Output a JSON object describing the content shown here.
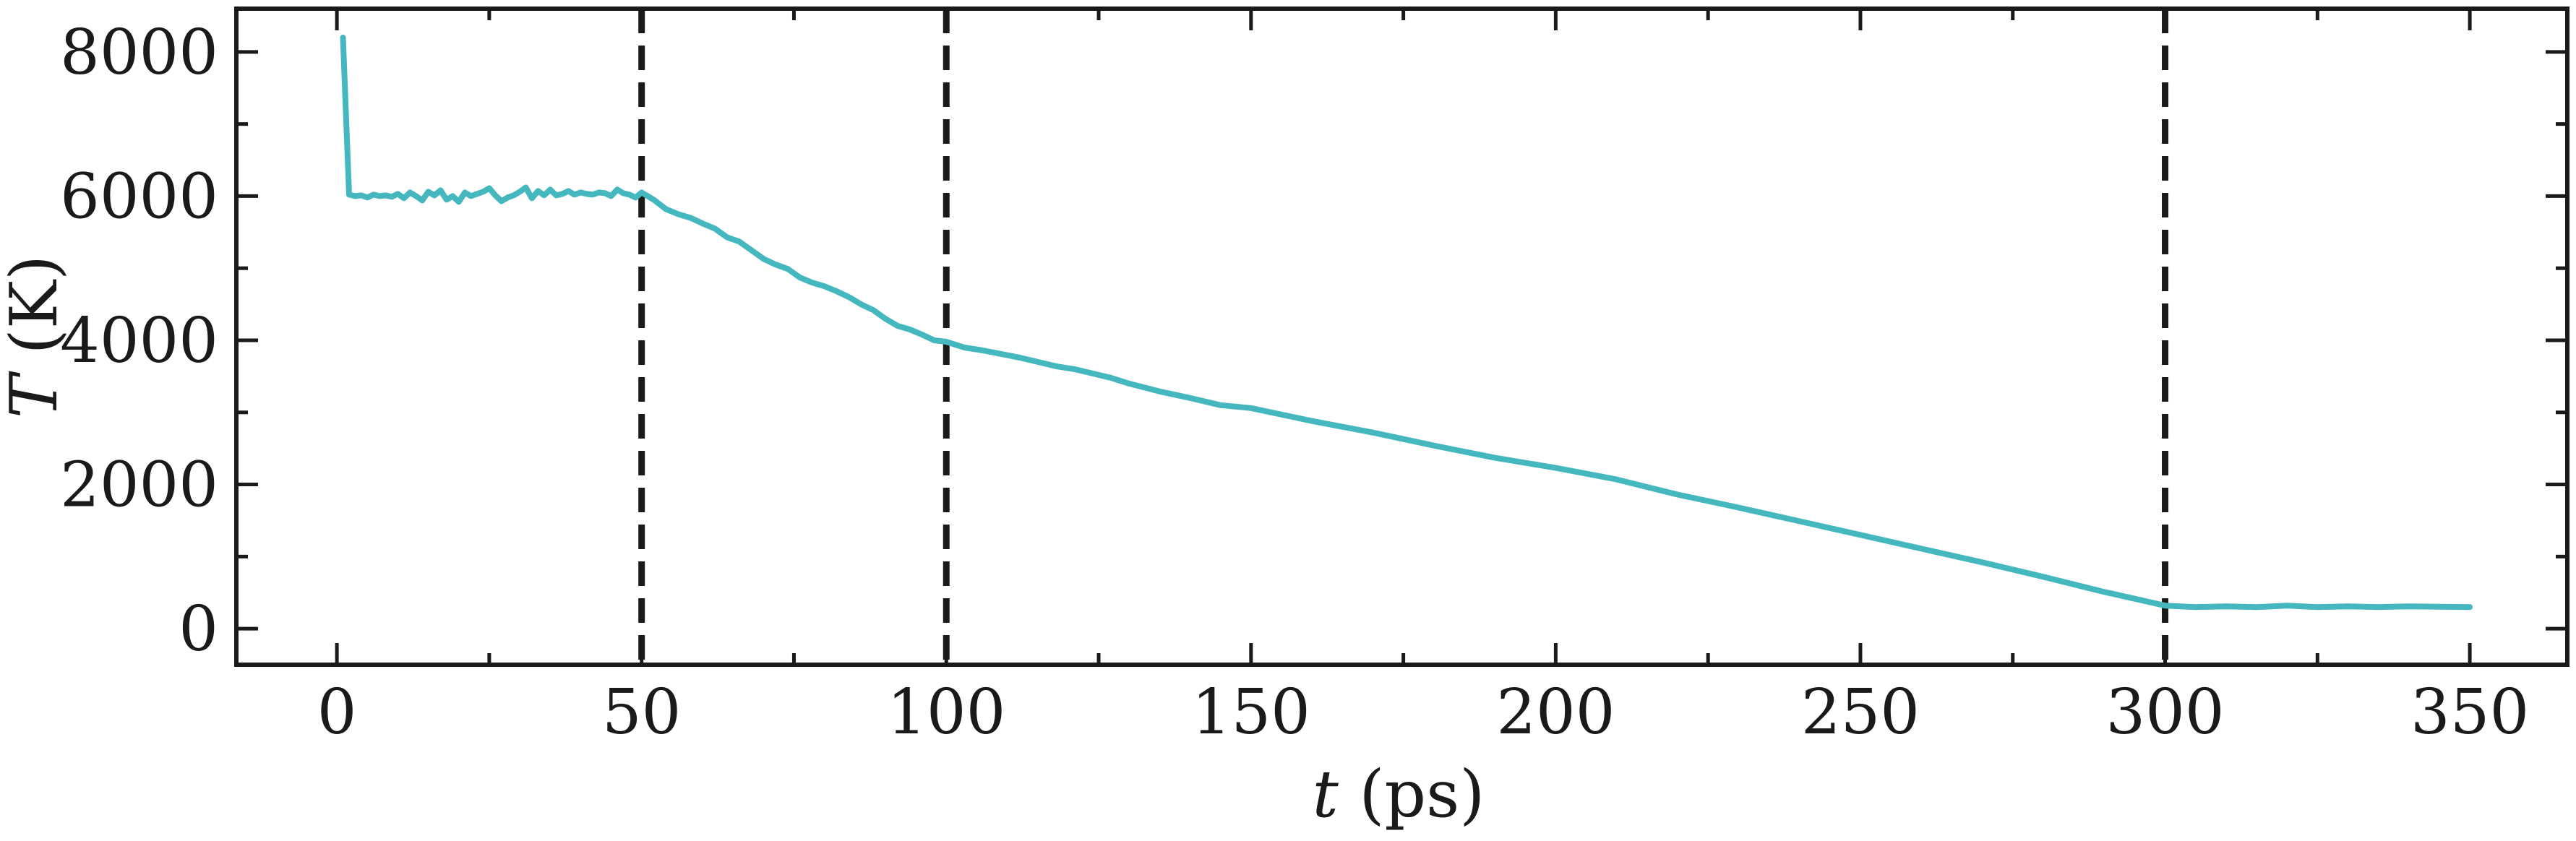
{
  "chart_data": {
    "type": "line",
    "title": "",
    "xlabel_symbol": "t",
    "xlabel_unit": " (ps)",
    "ylabel_symbol": "T",
    "ylabel_unit": " (K)",
    "xlim": [
      -16.5,
      366
    ],
    "ylim": [
      -500,
      8600
    ],
    "xticks": [
      0,
      50,
      100,
      150,
      200,
      250,
      300,
      350
    ],
    "yticks": [
      0,
      2000,
      4000,
      6000,
      8000
    ],
    "xtick_labels": [
      "0",
      "50",
      "100",
      "150",
      "200",
      "250",
      "300",
      "350"
    ],
    "ytick_labels": [
      "0",
      "2000",
      "4000",
      "6000",
      "8000"
    ],
    "vlines": [
      50,
      100,
      300
    ],
    "grid": false,
    "line_color": "#45b7be",
    "vline_color": "#1a1a1a",
    "series": [
      {
        "x": [
          1,
          2,
          3,
          4,
          5,
          6,
          7,
          8,
          9,
          10,
          11,
          12,
          13,
          14,
          15,
          16,
          17,
          18,
          19,
          20,
          21,
          22,
          23,
          24,
          25,
          26,
          27,
          28,
          29,
          30,
          31,
          32,
          33,
          34,
          35,
          36,
          37,
          38,
          39,
          40,
          41,
          42,
          43,
          44,
          45,
          46,
          47,
          48,
          49,
          50,
          52,
          54,
          56,
          58,
          60,
          62,
          64,
          66,
          68,
          70,
          72,
          74,
          76,
          78,
          80,
          82,
          84,
          86,
          88,
          90,
          92,
          94,
          96,
          98,
          100,
          103,
          106,
          109,
          112,
          115,
          118,
          121,
          124,
          127,
          130,
          135,
          140,
          145,
          150,
          160,
          170,
          180,
          190,
          200,
          210,
          220,
          230,
          240,
          250,
          260,
          270,
          280,
          290,
          300,
          305,
          310,
          315,
          320,
          325,
          330,
          335,
          340,
          345,
          350
        ],
        "y": [
          8200,
          6020,
          6000,
          6010,
          5980,
          6020,
          6000,
          6010,
          5990,
          6030,
          5970,
          6050,
          6000,
          5940,
          6060,
          6010,
          6080,
          5950,
          6000,
          5920,
          6050,
          6000,
          6030,
          6060,
          6110,
          6010,
          5930,
          5980,
          6010,
          6060,
          6120,
          5970,
          6070,
          6010,
          6090,
          6010,
          6030,
          6070,
          6020,
          6050,
          6030,
          6020,
          6050,
          6040,
          6000,
          6090,
          6040,
          6020,
          5980,
          6050,
          5950,
          5820,
          5750,
          5700,
          5620,
          5550,
          5430,
          5370,
          5250,
          5130,
          5050,
          4990,
          4870,
          4800,
          4750,
          4680,
          4600,
          4500,
          4420,
          4300,
          4200,
          4150,
          4080,
          4000,
          3980,
          3900,
          3860,
          3810,
          3760,
          3700,
          3640,
          3600,
          3540,
          3480,
          3400,
          3290,
          3200,
          3100,
          3060,
          2880,
          2720,
          2540,
          2370,
          2230,
          2070,
          1860,
          1680,
          1490,
          1300,
          1110,
          920,
          720,
          510,
          320,
          300,
          310,
          300,
          320,
          300,
          310,
          300,
          310,
          305,
          300
        ]
      }
    ]
  }
}
